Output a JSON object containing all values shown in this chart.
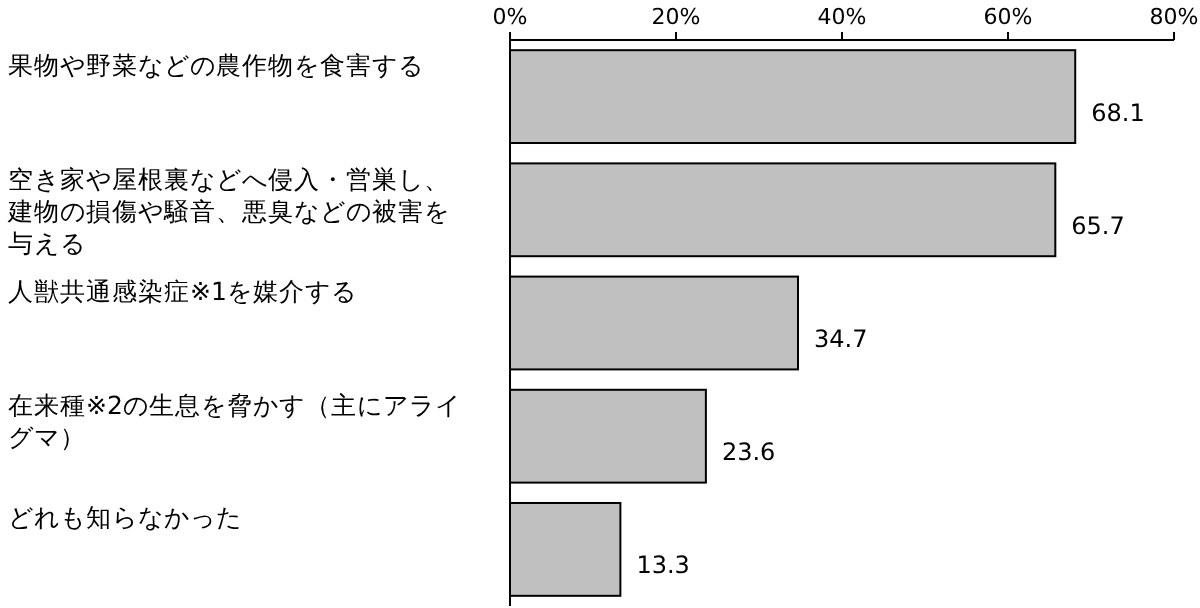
{
  "chart_data": {
    "type": "bar",
    "orientation": "horizontal",
    "categories": [
      "果物や野菜などの農作物を食害する",
      "空き家や屋根裏などへ侵入・営巣し、建物の損傷や騒音、悪臭などの被害を与える",
      "人獣共通感染症※1を媒介する",
      "在来種※2の生息を脅かす（主にアライグマ）",
      "どれも知らなかった"
    ],
    "values": [
      68.1,
      65.7,
      34.7,
      23.6,
      13.3
    ],
    "color": "#c0c0c0",
    "xlim": [
      0,
      80
    ],
    "xticks": [
      {
        "value": 0,
        "label": "0%"
      },
      {
        "value": 20,
        "label": "20%"
      },
      {
        "value": 40,
        "label": "40%"
      },
      {
        "value": 60,
        "label": "60%"
      },
      {
        "value": 80,
        "label": "80%"
      }
    ],
    "data_labels": true,
    "grid": false
  }
}
